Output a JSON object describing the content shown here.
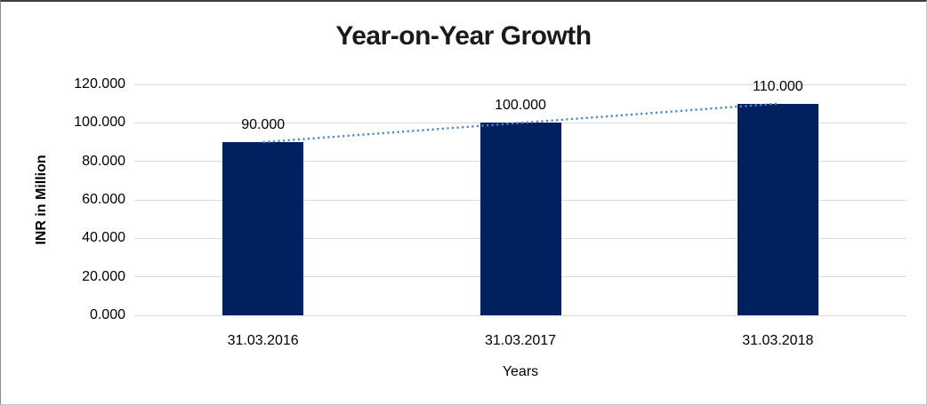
{
  "chart_data": {
    "type": "bar",
    "title": "Year-on-Year Growth",
    "xlabel": "Years",
    "ylabel": "INR in Million",
    "categories": [
      "31.03.2016",
      "31.03.2017",
      "31.03.2018"
    ],
    "values": [
      90000,
      100000,
      110000
    ],
    "value_labels": [
      "90.000",
      "100.000",
      "110.000"
    ],
    "ylim": [
      0,
      120000
    ],
    "yticks": [
      {
        "value": 0,
        "label": "0.000"
      },
      {
        "value": 20000,
        "label": "20.000"
      },
      {
        "value": 40000,
        "label": "40.000"
      },
      {
        "value": 60000,
        "label": "60.000"
      },
      {
        "value": 80000,
        "label": "80.000"
      },
      {
        "value": 100000,
        "label": "100.000"
      },
      {
        "value": 120000,
        "label": "120.000"
      }
    ],
    "grid": true,
    "legend": "none",
    "bar_color": "#002060",
    "gridline_color": "#d9d9d9",
    "trendline": {
      "type": "linear",
      "style": "dotted",
      "color": "#4f86c8"
    }
  }
}
